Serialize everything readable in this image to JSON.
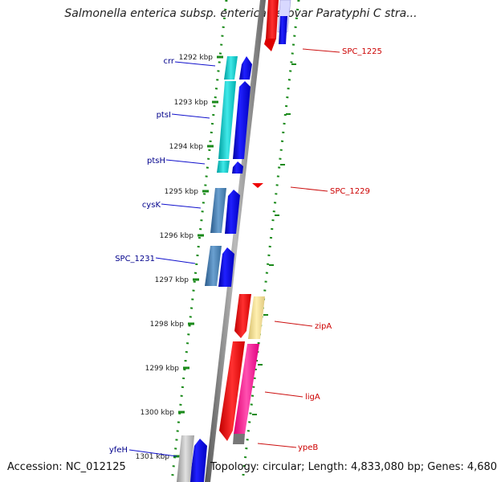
{
  "title": "Salmonella enterica subsp. enterica serovar Paratyphi C stra...",
  "accession_label": "Accession: NC_012125",
  "topology_label": "Topology: circular; Length: 4,833,080 bp; Genes: 4,680",
  "ticks": [
    {
      "label": "1292 kbp",
      "kbp": 1292
    },
    {
      "label": "1293 kbp",
      "kbp": 1293
    },
    {
      "label": "1294 kbp",
      "kbp": 1294
    },
    {
      "label": "1295 kbp",
      "kbp": 1295
    },
    {
      "label": "1296 kbp",
      "kbp": 1296
    },
    {
      "label": "1297 kbp",
      "kbp": 1297
    },
    {
      "label": "1298 kbp",
      "kbp": 1298
    },
    {
      "label": "1299 kbp",
      "kbp": 1299
    },
    {
      "label": "1300 kbp",
      "kbp": 1300
    },
    {
      "label": "1301 kbp",
      "kbp": 1301
    }
  ],
  "left_genes": [
    {
      "name": "crr",
      "color": "#00008b"
    },
    {
      "name": "ptsI",
      "color": "#00008b"
    },
    {
      "name": "ptsH",
      "color": "#00008b"
    },
    {
      "name": "cysK",
      "color": "#00008b"
    },
    {
      "name": "SPC_1231",
      "color": "#00008b"
    },
    {
      "name": "yfeH",
      "color": "#00008b"
    }
  ],
  "right_genes": [
    {
      "name": "SPC_1225",
      "color": "#cc0000"
    },
    {
      "name": "SPC_1229",
      "color": "#cc0000"
    },
    {
      "name": "zipA",
      "color": "#cc0000"
    },
    {
      "name": "ligA",
      "color": "#cc0000"
    },
    {
      "name": "ypeB",
      "color": "#cc0000"
    }
  ],
  "colors": {
    "forward_strand": "#0000ee",
    "reverse_strand": "#ee0000",
    "cyan_feature": "#00c8c8",
    "steel_feature": "#4682b4",
    "yellow_feature": "#f0e090",
    "pink_feature": "#ff2090",
    "gray_feature": "#a0a0a0",
    "backbone": "#808080",
    "gc_dots": "#228b22"
  }
}
